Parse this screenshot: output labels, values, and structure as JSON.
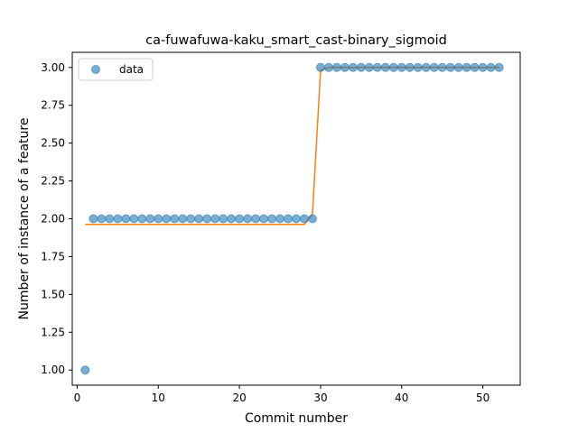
{
  "chart_data": {
    "type": "scatter",
    "title": "ca-fuwafuwa-kaku_smart_cast-binary_sigmoid",
    "xlabel": "Commit number",
    "ylabel": "Number of instance of a feature",
    "xlim": [
      -0.6,
      54.6
    ],
    "ylim": [
      0.9,
      3.1
    ],
    "x_ticks": [
      0,
      10,
      20,
      30,
      40,
      50
    ],
    "x_tick_labels": [
      "0",
      "10",
      "20",
      "30",
      "40",
      "50"
    ],
    "y_ticks": [
      1.0,
      1.25,
      1.5,
      1.75,
      2.0,
      2.25,
      2.5,
      2.75,
      3.0
    ],
    "y_tick_labels": [
      "1.00",
      "1.25",
      "1.50",
      "1.75",
      "2.00",
      "2.25",
      "2.50",
      "2.75",
      "3.00"
    ],
    "grid": false,
    "legend_position": "top-left",
    "series": [
      {
        "name": "data",
        "kind": "scatter",
        "color": "#1f77b4",
        "x": [
          1,
          2,
          3,
          4,
          5,
          6,
          7,
          8,
          9,
          10,
          11,
          12,
          13,
          14,
          15,
          16,
          17,
          18,
          19,
          20,
          21,
          22,
          23,
          24,
          25,
          26,
          27,
          28,
          29,
          30,
          31,
          32,
          33,
          34,
          35,
          36,
          37,
          38,
          39,
          40,
          41,
          42,
          43,
          44,
          45,
          46,
          47,
          48,
          49,
          50,
          51,
          52
        ],
        "y": [
          1,
          2,
          2,
          2,
          2,
          2,
          2,
          2,
          2,
          2,
          2,
          2,
          2,
          2,
          2,
          2,
          2,
          2,
          2,
          2,
          2,
          2,
          2,
          2,
          2,
          2,
          2,
          2,
          2,
          3,
          3,
          3,
          3,
          3,
          3,
          3,
          3,
          3,
          3,
          3,
          3,
          3,
          3,
          3,
          3,
          3,
          3,
          3,
          3,
          3,
          3,
          3
        ]
      },
      {
        "kind": "line",
        "color": "#ff7f0e",
        "x": [
          1,
          28,
          29,
          30,
          31,
          52
        ],
        "y": [
          1.963,
          1.963,
          2.03,
          2.98,
          3.0,
          3.0
        ]
      }
    ]
  }
}
